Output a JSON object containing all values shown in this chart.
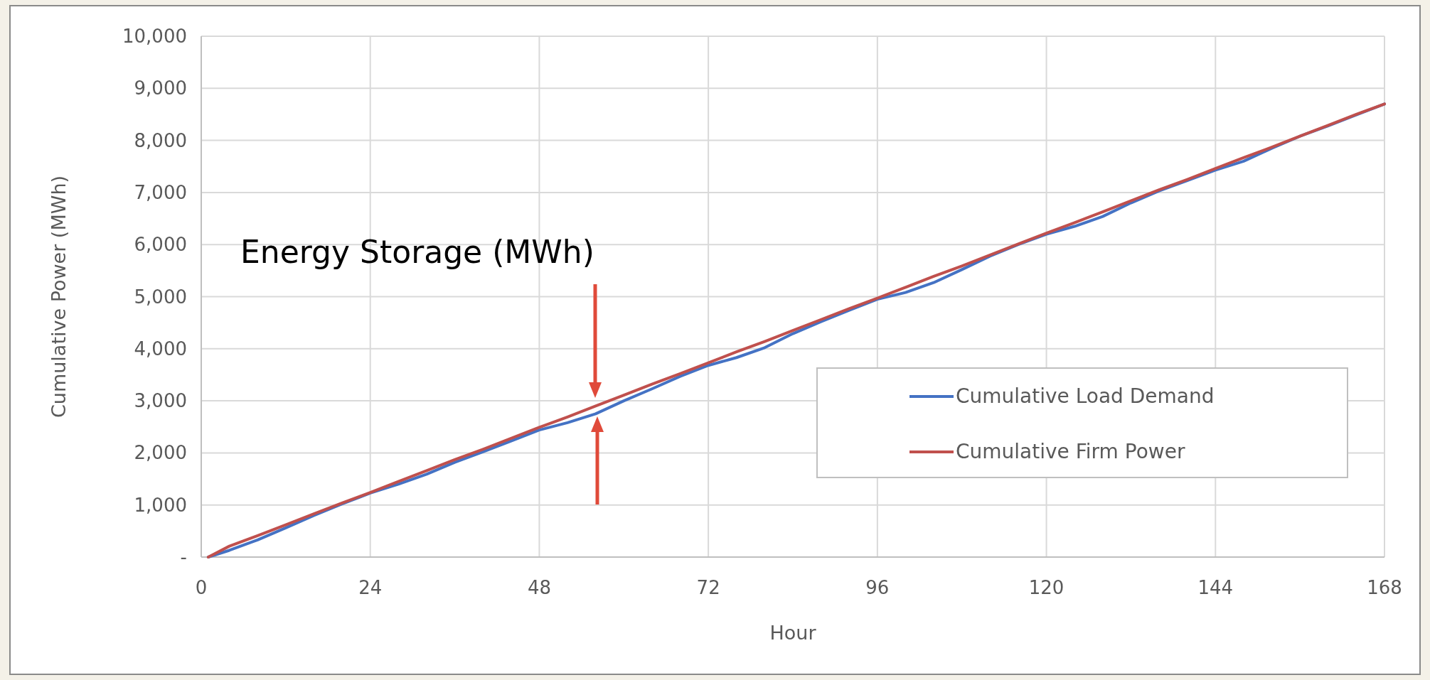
{
  "chart_data": {
    "type": "line",
    "xlabel": "Hour",
    "ylabel": "Cumulative Power (MWh)",
    "annotations": [
      "Energy Storage (MWh)"
    ],
    "x": [
      1,
      4,
      8,
      12,
      16,
      20,
      24,
      28,
      32,
      36,
      40,
      44,
      48,
      52,
      56,
      60,
      64,
      68,
      72,
      76,
      80,
      84,
      88,
      92,
      96,
      100,
      104,
      108,
      112,
      116,
      120,
      124,
      128,
      132,
      136,
      140,
      144,
      148,
      152,
      156,
      160,
      164,
      168
    ],
    "series": [
      {
        "name": "Cumulative Load Demand",
        "color": "#4472c4",
        "values": [
          0,
          130,
          330,
          560,
          800,
          1020,
          1230,
          1400,
          1590,
          1820,
          2020,
          2230,
          2440,
          2580,
          2750,
          3000,
          3230,
          3470,
          3680,
          3830,
          4020,
          4290,
          4520,
          4740,
          4950,
          5080,
          5270,
          5520,
          5780,
          6000,
          6200,
          6350,
          6540,
          6800,
          7030,
          7230,
          7430,
          7600,
          7850,
          8080,
          8280,
          8490,
          8700
        ]
      },
      {
        "name": "Cumulative Firm Power",
        "color": "#c0504d",
        "values": [
          0,
          210,
          410,
          620,
          830,
          1040,
          1240,
          1450,
          1660,
          1870,
          2070,
          2280,
          2490,
          2690,
          2900,
          3110,
          3320,
          3520,
          3730,
          3940,
          4140,
          4350,
          4560,
          4770,
          4970,
          5180,
          5390,
          5590,
          5800,
          6010,
          6220,
          6420,
          6630,
          6840,
          7050,
          7250,
          7460,
          7670,
          7870,
          8080,
          8290,
          8500,
          8700
        ]
      }
    ],
    "xlim": [
      0,
      168
    ],
    "xticks": [
      0,
      24,
      48,
      72,
      96,
      120,
      144,
      168
    ],
    "ylim": [
      0,
      10000
    ],
    "yticks": [
      {
        "value": 0,
        "label": "-"
      },
      {
        "value": 1000,
        "label": "1,000"
      },
      {
        "value": 2000,
        "label": "2,000"
      },
      {
        "value": 3000,
        "label": "3,000"
      },
      {
        "value": 4000,
        "label": "4,000"
      },
      {
        "value": 5000,
        "label": "5,000"
      },
      {
        "value": 6000,
        "label": "6,000"
      },
      {
        "value": 7000,
        "label": "7,000"
      },
      {
        "value": 8000,
        "label": "8,000"
      },
      {
        "value": 9000,
        "label": "9,000"
      },
      {
        "value": 10000,
        "label": "10,000"
      }
    ],
    "grid": true,
    "legend": "bottom right",
    "line_style": "solid"
  }
}
